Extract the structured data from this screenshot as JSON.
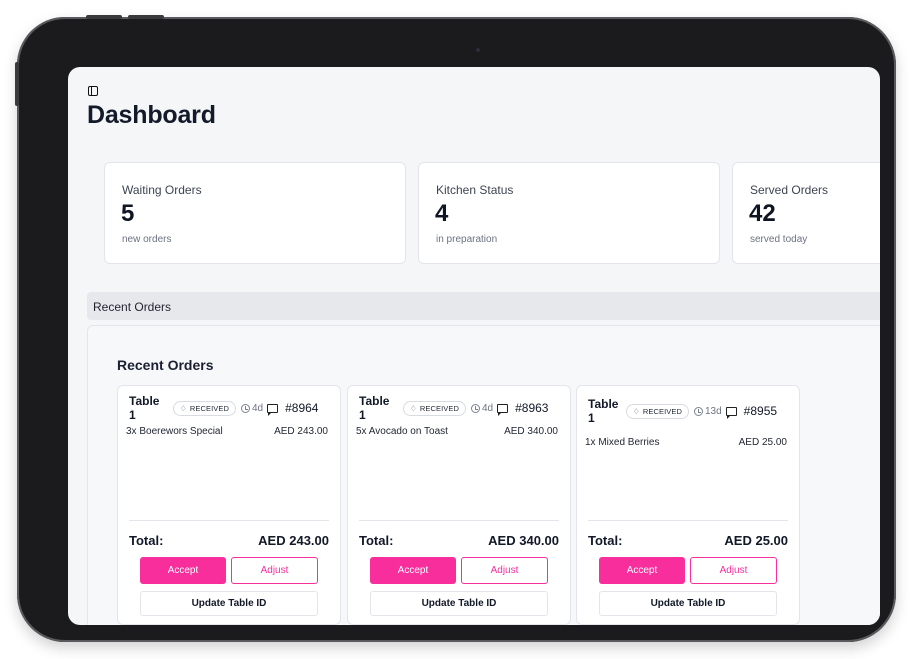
{
  "page": {
    "title": "Dashboard"
  },
  "icons": {
    "sidebar_toggle": "sidebar-panel-icon",
    "status": "bell-icon",
    "age": "clock-icon",
    "comment": "comment-icon"
  },
  "colors": {
    "accent": "#f72e9c",
    "background": "#f5f6f8",
    "card": "#ffffff"
  },
  "stats": [
    {
      "label": "Waiting Orders",
      "value": "5",
      "sub": "new orders"
    },
    {
      "label": "Kitchen Status",
      "value": "4",
      "sub": "in preparation"
    },
    {
      "label": "Served Orders",
      "value": "42",
      "sub": "served today"
    }
  ],
  "section_bar": {
    "label": "Recent Orders"
  },
  "orders_panel": {
    "heading": "Recent Orders"
  },
  "orders": [
    {
      "table": "Table 1",
      "status": "RECEIVED",
      "age": "4d",
      "order_number": "#8964",
      "items": [
        {
          "name": "3x Boerewors Special",
          "price": "AED 243.00"
        }
      ],
      "total_label": "Total:",
      "total": "AED 243.00",
      "accept_label": "Accept",
      "adjust_label": "Adjust",
      "update_label": "Update Table ID"
    },
    {
      "table": "Table 1",
      "status": "RECEIVED",
      "age": "4d",
      "order_number": "#8963",
      "items": [
        {
          "name": "5x Avocado on Toast",
          "price": "AED 340.00"
        }
      ],
      "total_label": "Total:",
      "total": "AED 340.00",
      "accept_label": "Accept",
      "adjust_label": "Adjust",
      "update_label": "Update Table ID"
    },
    {
      "table": "Table 1",
      "status": "RECEIVED",
      "age": "13d",
      "order_number": "#8955",
      "items": [
        {
          "name": "1x Mixed Berries",
          "price": "AED 25.00"
        }
      ],
      "total_label": "Total:",
      "total": "AED 25.00",
      "accept_label": "Accept",
      "adjust_label": "Adjust",
      "update_label": "Update Table ID"
    }
  ]
}
